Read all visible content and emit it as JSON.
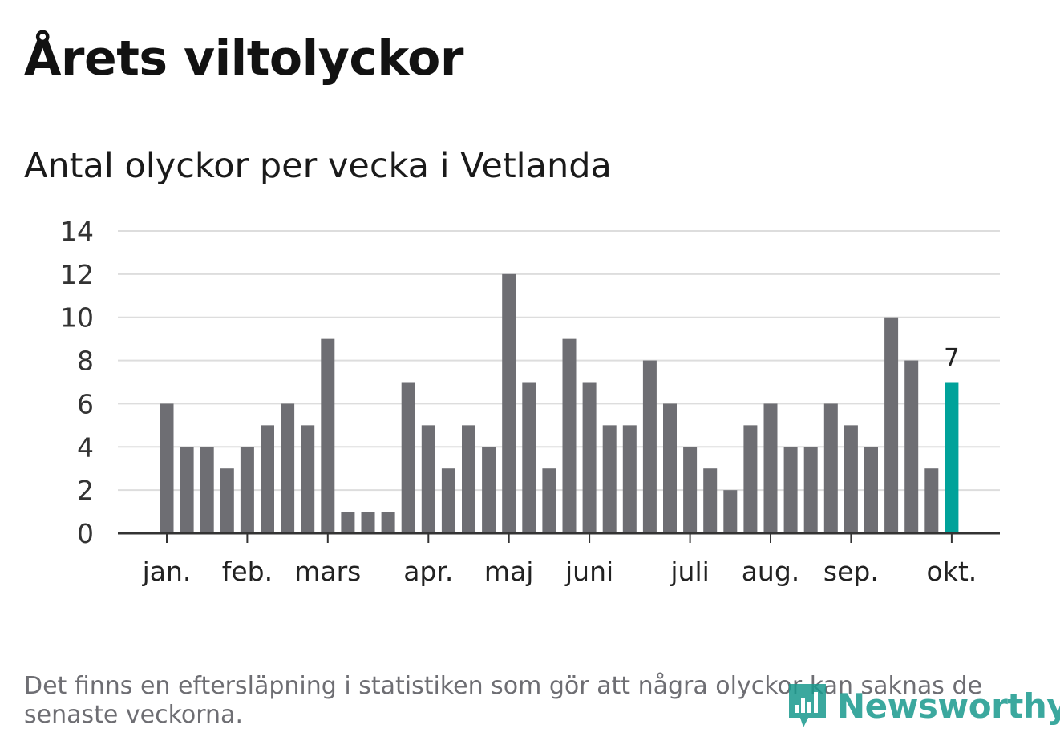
{
  "title": "Årets viltolyckor",
  "subtitle": "Antal olyckor per vecka i Vetlanda",
  "footnote": "Det finns en eftersläpning i statistiken som gör att några olyckor kan saknas de senaste veckorna.",
  "logo": {
    "text": "Newsworthy",
    "icon": "bar-chart-speech-bubble-icon",
    "color": "#1a9a8e"
  },
  "colors": {
    "bar": "#6e6e73",
    "highlight": "#00a29a",
    "grid": "#dddddd",
    "axis": "#333333"
  },
  "chart_data": {
    "type": "bar",
    "title": "Antal olyckor per vecka i Vetlanda",
    "xlabel": "",
    "ylabel": "",
    "ylim": [
      0,
      14
    ],
    "yticks": [
      0,
      2,
      4,
      6,
      8,
      10,
      12,
      14
    ],
    "grid": true,
    "weeks": [
      1,
      2,
      3,
      4,
      5,
      6,
      7,
      8,
      9,
      10,
      11,
      12,
      13,
      14,
      15,
      16,
      17,
      18,
      19,
      20,
      21,
      22,
      23,
      24,
      25,
      26,
      27,
      28,
      29,
      30,
      31,
      32,
      33,
      34,
      35,
      36,
      37,
      38,
      39,
      40
    ],
    "values": [
      6,
      4,
      4,
      3,
      4,
      5,
      6,
      5,
      9,
      1,
      1,
      1,
      7,
      5,
      3,
      5,
      4,
      12,
      7,
      3,
      9,
      7,
      5,
      5,
      8,
      6,
      4,
      3,
      2,
      5,
      6,
      4,
      4,
      6,
      5,
      4,
      10,
      8,
      3,
      7
    ],
    "highlight_index": 39,
    "highlight_label": "7",
    "month_ticks": [
      {
        "label": "jan.",
        "position": 1
      },
      {
        "label": "feb.",
        "position": 5
      },
      {
        "label": "mars",
        "position": 9
      },
      {
        "label": "apr.",
        "position": 14
      },
      {
        "label": "maj",
        "position": 18
      },
      {
        "label": "juni",
        "position": 22
      },
      {
        "label": "juli",
        "position": 27
      },
      {
        "label": "aug.",
        "position": 31
      },
      {
        "label": "sep.",
        "position": 35
      },
      {
        "label": "okt.",
        "position": 40
      }
    ]
  }
}
